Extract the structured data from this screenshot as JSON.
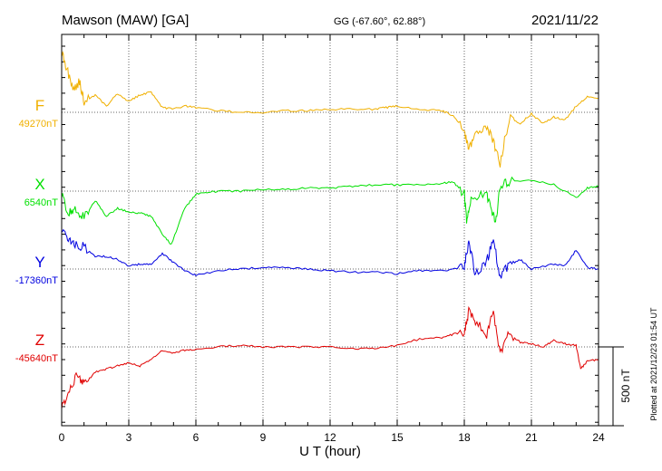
{
  "header": {
    "station": "Mawson (MAW)  [GA]",
    "coords": "GG (-67.60°,  62.88°)",
    "date": "2021/11/22"
  },
  "plotted_note": "Plotted at 2021/12/23 01:54 UT",
  "colors": {
    "F": "#f0b000",
    "X": "#00e000",
    "Y": "#0000e0",
    "Z": "#e00000"
  },
  "chart_data": {
    "type": "line",
    "xlabel": "U T (hour)",
    "x_ticks": [
      "0",
      "3",
      "6",
      "9",
      "12",
      "15",
      "18",
      "21",
      "24"
    ],
    "xlim": [
      0,
      24
    ],
    "scale_bar": {
      "label": "500 nT",
      "value": 500
    },
    "series": [
      {
        "name": "F",
        "baseline_label": "49270nT",
        "baseline": 49270,
        "points": [
          [
            0,
            49650
          ],
          [
            0.2,
            49560
          ],
          [
            0.5,
            49420
          ],
          [
            0.8,
            49460
          ],
          [
            1.0,
            49340
          ],
          [
            1.5,
            49380
          ],
          [
            2.0,
            49310
          ],
          [
            2.5,
            49390
          ],
          [
            3.0,
            49340
          ],
          [
            3.5,
            49380
          ],
          [
            4.0,
            49400
          ],
          [
            4.5,
            49300
          ],
          [
            5.0,
            49290
          ],
          [
            5.5,
            49310
          ],
          [
            6.0,
            49300
          ],
          [
            7.0,
            49280
          ],
          [
            8.0,
            49270
          ],
          [
            9.0,
            49270
          ],
          [
            10.0,
            49280
          ],
          [
            11.0,
            49280
          ],
          [
            12.0,
            49290
          ],
          [
            13.0,
            49290
          ],
          [
            14.0,
            49290
          ],
          [
            14.5,
            49300
          ],
          [
            15.0,
            49310
          ],
          [
            16.0,
            49290
          ],
          [
            17.0,
            49280
          ],
          [
            17.5,
            49250
          ],
          [
            18.0,
            49150
          ],
          [
            18.2,
            49050
          ],
          [
            18.5,
            49120
          ],
          [
            19.0,
            49180
          ],
          [
            19.3,
            49080
          ],
          [
            19.6,
            48950
          ],
          [
            20.0,
            49230
          ],
          [
            20.5,
            49200
          ],
          [
            21.0,
            49260
          ],
          [
            21.5,
            49200
          ],
          [
            22.0,
            49240
          ],
          [
            22.5,
            49220
          ],
          [
            23.0,
            49310
          ],
          [
            23.5,
            49370
          ],
          [
            24.0,
            49360
          ]
        ]
      },
      {
        "name": "X",
        "baseline_label": "6540nT",
        "baseline": 6540,
        "points": [
          [
            0,
            6520
          ],
          [
            0.3,
            6400
          ],
          [
            0.6,
            6430
          ],
          [
            1.0,
            6370
          ],
          [
            1.5,
            6480
          ],
          [
            2.0,
            6380
          ],
          [
            2.5,
            6430
          ],
          [
            3.0,
            6410
          ],
          [
            3.5,
            6400
          ],
          [
            4.0,
            6380
          ],
          [
            4.5,
            6270
          ],
          [
            4.9,
            6200
          ],
          [
            5.5,
            6430
          ],
          [
            6.0,
            6520
          ],
          [
            6.5,
            6530
          ],
          [
            7.0,
            6540
          ],
          [
            8.0,
            6540
          ],
          [
            9.0,
            6550
          ],
          [
            10.0,
            6550
          ],
          [
            11.0,
            6560
          ],
          [
            12.0,
            6560
          ],
          [
            13.0,
            6570
          ],
          [
            14.0,
            6580
          ],
          [
            15.0,
            6580
          ],
          [
            16.0,
            6580
          ],
          [
            17.0,
            6590
          ],
          [
            17.5,
            6600
          ],
          [
            18.0,
            6520
          ],
          [
            18.1,
            6360
          ],
          [
            18.3,
            6500
          ],
          [
            19.0,
            6520
          ],
          [
            19.2,
            6440
          ],
          [
            19.4,
            6330
          ],
          [
            19.6,
            6580
          ],
          [
            20.0,
            6600
          ],
          [
            21.0,
            6610
          ],
          [
            22.0,
            6580
          ],
          [
            23.0,
            6500
          ],
          [
            23.5,
            6560
          ],
          [
            24.0,
            6570
          ]
        ]
      },
      {
        "name": "Y",
        "baseline_label": "-17360nT",
        "baseline": -17360,
        "points": [
          [
            0,
            -17100
          ],
          [
            0.3,
            -17180
          ],
          [
            0.6,
            -17200
          ],
          [
            1.0,
            -17220
          ],
          [
            1.5,
            -17280
          ],
          [
            2.0,
            -17280
          ],
          [
            2.5,
            -17300
          ],
          [
            3.0,
            -17340
          ],
          [
            3.5,
            -17330
          ],
          [
            4.0,
            -17330
          ],
          [
            4.5,
            -17260
          ],
          [
            5.0,
            -17320
          ],
          [
            5.5,
            -17370
          ],
          [
            6.0,
            -17400
          ],
          [
            7.0,
            -17370
          ],
          [
            8.0,
            -17360
          ],
          [
            9.0,
            -17350
          ],
          [
            10.0,
            -17350
          ],
          [
            11.0,
            -17360
          ],
          [
            12.0,
            -17370
          ],
          [
            13.0,
            -17380
          ],
          [
            14.0,
            -17380
          ],
          [
            15.0,
            -17390
          ],
          [
            16.0,
            -17370
          ],
          [
            17.0,
            -17370
          ],
          [
            17.5,
            -17360
          ],
          [
            18.0,
            -17340
          ],
          [
            18.2,
            -17180
          ],
          [
            18.5,
            -17400
          ],
          [
            19.0,
            -17310
          ],
          [
            19.3,
            -17180
          ],
          [
            19.6,
            -17400
          ],
          [
            20.0,
            -17330
          ],
          [
            20.5,
            -17300
          ],
          [
            21.0,
            -17360
          ],
          [
            22.0,
            -17330
          ],
          [
            22.5,
            -17340
          ],
          [
            23.0,
            -17240
          ],
          [
            23.5,
            -17350
          ],
          [
            24.0,
            -17360
          ]
        ]
      },
      {
        "name": "Z",
        "baseline_label": "-45640nT",
        "baseline": -45640,
        "points": [
          [
            0,
            -46020
          ],
          [
            0.3,
            -45930
          ],
          [
            0.7,
            -45820
          ],
          [
            1.0,
            -45880
          ],
          [
            1.5,
            -45800
          ],
          [
            2.0,
            -45780
          ],
          [
            2.5,
            -45760
          ],
          [
            3.0,
            -45740
          ],
          [
            3.5,
            -45760
          ],
          [
            4.0,
            -45720
          ],
          [
            4.5,
            -45660
          ],
          [
            5.0,
            -45680
          ],
          [
            5.5,
            -45660
          ],
          [
            6.0,
            -45660
          ],
          [
            7.0,
            -45640
          ],
          [
            8.0,
            -45630
          ],
          [
            9.0,
            -45640
          ],
          [
            10.0,
            -45640
          ],
          [
            11.0,
            -45640
          ],
          [
            12.0,
            -45640
          ],
          [
            13.0,
            -45650
          ],
          [
            14.0,
            -45650
          ],
          [
            15.0,
            -45630
          ],
          [
            16.0,
            -45590
          ],
          [
            17.0,
            -45580
          ],
          [
            17.5,
            -45560
          ],
          [
            18.0,
            -45540
          ],
          [
            18.2,
            -45420
          ],
          [
            18.5,
            -45480
          ],
          [
            19.0,
            -45560
          ],
          [
            19.3,
            -45410
          ],
          [
            19.6,
            -45680
          ],
          [
            20.0,
            -45560
          ],
          [
            20.5,
            -45610
          ],
          [
            21.0,
            -45620
          ],
          [
            21.5,
            -45640
          ],
          [
            22.0,
            -45600
          ],
          [
            22.5,
            -45620
          ],
          [
            23.0,
            -45630
          ],
          [
            23.2,
            -45780
          ],
          [
            23.5,
            -45730
          ],
          [
            24.0,
            -45720
          ]
        ]
      }
    ]
  }
}
